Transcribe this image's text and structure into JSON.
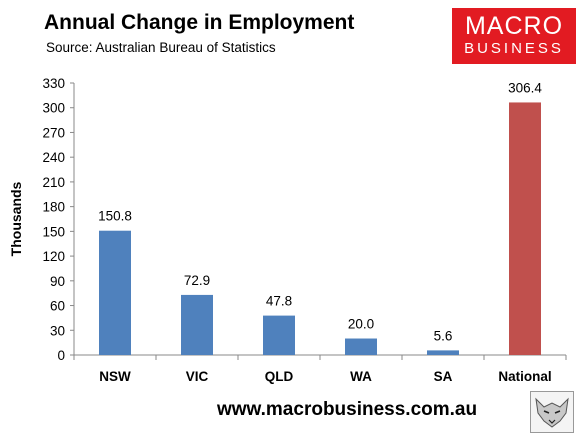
{
  "title": "Annual Change in Employment",
  "subtitle": "Source: Australian Bureau of Statistics",
  "logo": {
    "line1": "MACRO",
    "line2": "BUSINESS",
    "color": "#e21b22",
    "icon": "wolf-icon"
  },
  "footer": "www.macrobusiness.com.au",
  "chart_data": {
    "type": "bar",
    "categories": [
      "NSW",
      "VIC",
      "QLD",
      "WA",
      "SA",
      "National"
    ],
    "values": [
      150.8,
      72.9,
      47.8,
      20.0,
      5.6,
      306.4
    ],
    "data_labels": [
      "150.8",
      "72.9",
      "47.8",
      "20.0",
      "5.6",
      "306.4"
    ],
    "colors": [
      "#4f81bd",
      "#4f81bd",
      "#4f81bd",
      "#4f81bd",
      "#4f81bd",
      "#c0504d"
    ],
    "ylabel": "Thousands",
    "xlabel": "",
    "ylim": [
      0,
      330
    ],
    "yticks": [
      0,
      30,
      60,
      90,
      120,
      150,
      180,
      210,
      240,
      270,
      300,
      330
    ],
    "grid": false
  }
}
